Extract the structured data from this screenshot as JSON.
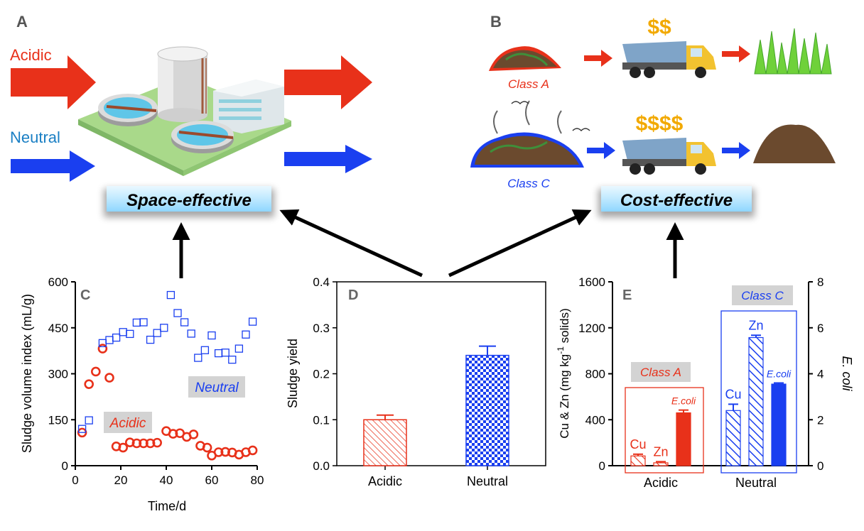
{
  "panel_a": {
    "label": "A",
    "acidic_label": "Acidic",
    "neutral_label": "Neutral",
    "colors": {
      "acidic": "#e8311a",
      "neutral": "#1a3ff0"
    }
  },
  "panel_b": {
    "label": "B",
    "class_a_label": "Class A",
    "class_c_label": "Class C",
    "cost_low": "$$",
    "cost_high": "$$$$"
  },
  "banners": {
    "space_effective": "Space-effective",
    "cost_effective": "Cost-effective"
  },
  "chart_data": [
    {
      "type": "scatter",
      "panel_label": "C",
      "xlabel": "Time/d",
      "ylabel": "Sludge volume index (mL/g)",
      "xlim": [
        0,
        80
      ],
      "ylim": [
        0,
        600
      ],
      "xticks": [
        "0",
        "20",
        "40",
        "60",
        "80"
      ],
      "yticks": [
        "0",
        "150",
        "300",
        "450",
        "600"
      ],
      "grid": false,
      "series": [
        {
          "name": "Acidic",
          "color": "#e8311a",
          "marker": "circle",
          "points": [
            [
              3,
              108
            ],
            [
              6,
              266
            ],
            [
              9,
              307
            ],
            [
              12,
              382
            ],
            [
              15,
              287
            ],
            [
              18,
              63
            ],
            [
              21,
              59
            ],
            [
              24,
              76
            ],
            [
              27,
              73
            ],
            [
              30,
              73
            ],
            [
              33,
              73
            ],
            [
              36,
              75
            ],
            [
              40,
              113
            ],
            [
              43,
              104
            ],
            [
              46,
              106
            ],
            [
              49,
              94
            ],
            [
              52,
              102
            ],
            [
              55,
              65
            ],
            [
              58,
              59
            ],
            [
              60,
              33
            ],
            [
              63,
              44
            ],
            [
              66,
              45
            ],
            [
              69,
              43
            ],
            [
              72,
              36
            ],
            [
              75,
              44
            ],
            [
              78,
              50
            ]
          ]
        },
        {
          "name": "Neutral",
          "color": "#1a3ff0",
          "marker": "square",
          "points": [
            [
              3,
              120
            ],
            [
              6,
              148
            ],
            [
              12,
              400
            ],
            [
              15,
              410
            ],
            [
              18,
              418
            ],
            [
              21,
              436
            ],
            [
              24,
              430
            ],
            [
              27,
              467
            ],
            [
              30,
              468
            ],
            [
              33,
              411
            ],
            [
              36,
              433
            ],
            [
              39,
              450
            ],
            [
              42,
              557
            ],
            [
              45,
              498
            ],
            [
              48,
              468
            ],
            [
              51,
              431
            ],
            [
              54,
              352
            ],
            [
              57,
              377
            ],
            [
              60,
              425
            ],
            [
              63,
              367
            ],
            [
              66,
              369
            ],
            [
              69,
              346
            ],
            [
              72,
              382
            ],
            [
              75,
              428
            ],
            [
              78,
              470
            ]
          ]
        }
      ]
    },
    {
      "type": "bar",
      "panel_label": "D",
      "ylabel": "Sludge yield",
      "categories": [
        "Acidic",
        "Neutral"
      ],
      "values": [
        0.1,
        0.24
      ],
      "errors": [
        0.01,
        0.02
      ],
      "ylim": [
        0,
        0.4
      ],
      "yticks": [
        "0.0",
        "0.1",
        "0.2",
        "0.3",
        "0.4"
      ],
      "colors": [
        "#e8311a",
        "#1a3ff0"
      ]
    },
    {
      "type": "bar",
      "panel_label": "E",
      "ylabel_left": "Cu & Zn (mg kg",
      "ylabel_left_sup": "-1",
      "ylabel_left_tail": "solids)",
      "ylabel_right": "E. coli",
      "ylim_left": [
        0,
        1600
      ],
      "ylim_right": [
        0,
        8
      ],
      "yticks_left": [
        "0",
        "400",
        "800",
        "1200",
        "1600"
      ],
      "yticks_right": [
        "0",
        "2",
        "4",
        "6",
        "8"
      ],
      "categories": [
        "Acidic",
        "Neutral"
      ],
      "class_labels": [
        "Class A",
        "Class C"
      ],
      "bar_labels": [
        "Cu",
        "Zn",
        "E.coli"
      ],
      "series": [
        {
          "name": "Cu",
          "axis": "left",
          "values": [
            85,
            480
          ],
          "errors": [
            15,
            55
          ]
        },
        {
          "name": "Zn",
          "axis": "left",
          "values": [
            25,
            1115
          ],
          "errors": [
            10,
            20
          ]
        },
        {
          "name": "E.coli",
          "axis": "right",
          "values": [
            2.3,
            3.55
          ],
          "errors": [
            0.12,
            0.05
          ]
        }
      ],
      "colors": [
        "#e8311a",
        "#1a3ff0"
      ]
    }
  ]
}
